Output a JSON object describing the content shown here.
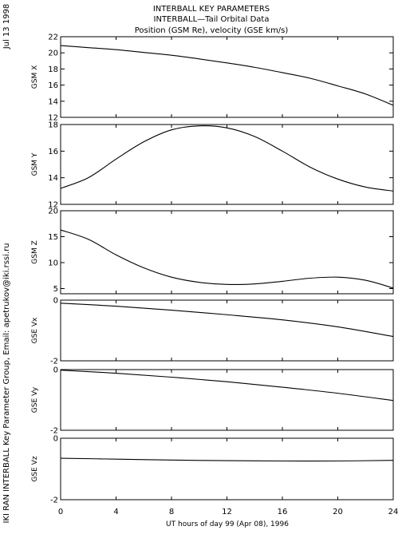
{
  "header": {
    "line1": "INTERBALL KEY PARAMETERS",
    "line2": "INTERBALL—Tail Orbital Data",
    "line3": "Position (GSM Re), velocity (GSE km/s)"
  },
  "side": {
    "date": "Jul 13 1998",
    "credit": "IKI RAN INTERBALL Key Parameter Group, Email: apetrukov@iki.rssi.ru"
  },
  "chart_data": {
    "type": "line",
    "xlabel": "UT hours of day  99 (Apr 08), 1996",
    "xlim": [
      0,
      24
    ],
    "xticks": [
      0,
      4,
      8,
      12,
      16,
      20,
      24
    ],
    "panels": [
      {
        "ylabel": "GSM X",
        "ylim": [
          12,
          22
        ],
        "yticks": [
          12,
          14,
          16,
          18,
          20,
          22
        ],
        "x": [
          0,
          2,
          4,
          6,
          8,
          10,
          12,
          14,
          16,
          18,
          20,
          22,
          24
        ],
        "y": [
          20.9,
          20.65,
          20.4,
          20.05,
          19.7,
          19.25,
          18.75,
          18.2,
          17.55,
          16.85,
          15.9,
          14.9,
          13.5
        ]
      },
      {
        "ylabel": "GSM Y",
        "ylim": [
          12,
          18
        ],
        "yticks": [
          12,
          14,
          16,
          18
        ],
        "x": [
          0,
          2,
          4,
          6,
          8,
          10,
          12,
          14,
          16,
          18,
          20,
          22,
          24
        ],
        "y": [
          13.2,
          14.0,
          15.4,
          16.7,
          17.6,
          17.9,
          17.75,
          17.1,
          16.0,
          14.8,
          13.9,
          13.3,
          13.0
        ]
      },
      {
        "ylabel": "GSM Z",
        "ylim": [
          4,
          20
        ],
        "yticks": [
          5,
          10,
          15,
          20
        ],
        "x": [
          0,
          2,
          4,
          6,
          8,
          10,
          12,
          14,
          16,
          18,
          20,
          22,
          24
        ],
        "y": [
          16.3,
          14.5,
          11.5,
          9.0,
          7.2,
          6.2,
          5.8,
          5.9,
          6.4,
          7.0,
          7.2,
          6.6,
          5.1
        ]
      },
      {
        "ylabel": "GSE Vx",
        "ylim": [
          -2,
          0
        ],
        "yticks": [
          0,
          -2
        ],
        "x": [
          0,
          4,
          8,
          12,
          16,
          20,
          24
        ],
        "y": [
          -0.1,
          -0.2,
          -0.33,
          -0.48,
          -0.65,
          -0.88,
          -1.2
        ]
      },
      {
        "ylabel": "GSE Vy",
        "ylim": [
          -2,
          0
        ],
        "yticks": [
          0,
          -2
        ],
        "x": [
          0,
          4,
          8,
          12,
          16,
          20,
          24
        ],
        "y": [
          -0.02,
          -0.12,
          -0.25,
          -0.4,
          -0.58,
          -0.78,
          -1.02
        ]
      },
      {
        "ylabel": "GSE Vz",
        "ylim": [
          -2,
          0
        ],
        "yticks": [
          0,
          -2
        ],
        "x": [
          0,
          4,
          8,
          12,
          16,
          20,
          24
        ],
        "y": [
          -0.65,
          -0.68,
          -0.71,
          -0.73,
          -0.74,
          -0.74,
          -0.72
        ]
      }
    ]
  }
}
